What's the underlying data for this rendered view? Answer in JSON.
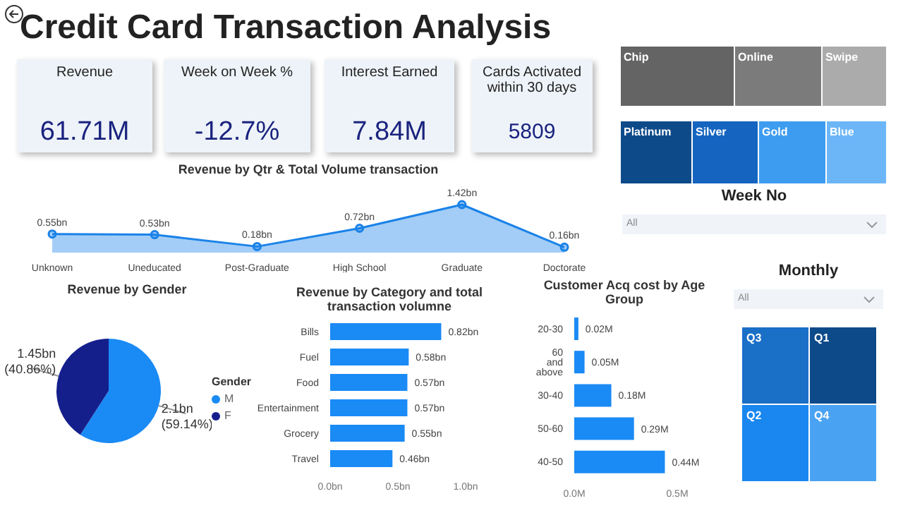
{
  "chart_data": [
    {
      "type": "other",
      "title": "Credit Card Transaction Analysis",
      "categories": [
        "Revenue",
        "Week on Week %",
        "Interest Earned",
        "Cards Activated within 30 days"
      ],
      "value_labels": [
        "61.71M",
        "-12.7%",
        "7.84M",
        "5809"
      ]
    },
    {
      "type": "area",
      "title": "Revenue by Qtr & Total Volume transaction",
      "categories": [
        "Unknown",
        "Uneducated",
        "Post-Graduate",
        "High School",
        "Graduate",
        "Doctorate"
      ],
      "values": [
        0.55,
        0.53,
        0.18,
        0.72,
        1.42,
        0.16
      ],
      "value_labels": [
        "0.55bn",
        "0.53bn",
        "0.18bn",
        "0.72bn",
        "1.42bn",
        "0.16bn"
      ],
      "color": "#1a82e8",
      "marker": "circle",
      "tick_labels": "x"
    },
    {
      "type": "pie",
      "title": "Revenue by Gender",
      "categories": [
        "M",
        "F"
      ],
      "values": [
        59.14,
        40.86
      ],
      "colors": [
        "#1a8af5",
        "#141f8c"
      ],
      "value_labels": [
        "2.1bn (59.14%)",
        "1.45bn (40.86%)"
      ],
      "legend": "right",
      "legend_title": "Gender"
    },
    {
      "type": "bar",
      "orientation": "horizontal",
      "title": "Revenue by Category and total transaction volumne",
      "categories": [
        "Bills",
        "Fuel",
        "Food",
        "Entertainment",
        "Grocery",
        "Travel"
      ],
      "values": [
        0.82,
        0.58,
        0.57,
        0.57,
        0.55,
        0.46
      ],
      "value_labels": [
        "0.82bn",
        "0.58bn",
        "0.57bn",
        "0.57bn",
        "0.55bn",
        "0.46bn"
      ],
      "color": "#1a8af5",
      "xlim": [
        0,
        1
      ],
      "xticks": [
        {
          "value": 0,
          "label": "0.0bn"
        },
        {
          "value": 0.5,
          "label": "0.5bn"
        },
        {
          "value": 1,
          "label": "1.0bn"
        }
      ]
    },
    {
      "type": "bar",
      "orientation": "horizontal",
      "title": "Customer Acq cost by Age Group",
      "categories": [
        "20-30",
        "60 and above",
        "30-40",
        "50-60",
        "40-50"
      ],
      "values": [
        0.02,
        0.05,
        0.18,
        0.29,
        0.44
      ],
      "value_labels": [
        "0.02M",
        "0.05M",
        "0.18M",
        "0.29M",
        "0.44M"
      ],
      "color": "#1a8af5",
      "xlim": [
        0,
        0.5
      ],
      "xticks": [
        {
          "value": 0,
          "label": "0.0M"
        },
        {
          "value": 0.5,
          "label": "0.5M"
        }
      ]
    },
    {
      "type": "other",
      "categories": [
        "Chip",
        "Online",
        "Swipe"
      ],
      "colors": [
        "#646464",
        "#7b7b7b",
        "#ababab"
      ]
    },
    {
      "type": "other",
      "categories": [
        "Platinum",
        "Silver",
        "Gold",
        "Blue"
      ],
      "colors": [
        "#0d4a8a",
        "#1565c0",
        "#3d9cf0",
        "#6cb6f7"
      ]
    },
    {
      "type": "other",
      "title": "Week No",
      "annotations": [
        "All"
      ]
    },
    {
      "type": "other",
      "title": "Monthly",
      "annotations": [
        "All"
      ],
      "categories": [
        "Q3",
        "Q1",
        "Q2",
        "Q4"
      ],
      "colors": [
        "#1a6fc7",
        "#0d4a8a",
        "#1a87f0",
        "#4aa3f2"
      ]
    }
  ]
}
